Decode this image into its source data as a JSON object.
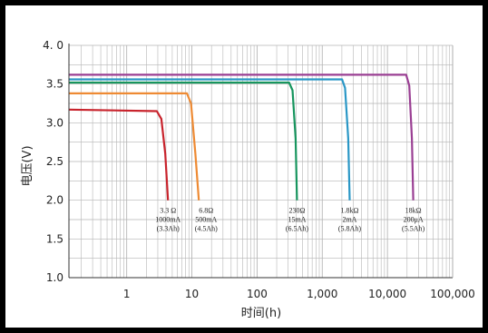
{
  "chart_data": {
    "type": "line",
    "xscale": "log",
    "xlim": [
      0.13,
      100000
    ],
    "ylim": [
      1.0,
      4.0
    ],
    "xlabel": "时间(h)",
    "ylabel": "电压(V)",
    "x_ticks": [
      {
        "value": 1,
        "label": "1"
      },
      {
        "value": 10,
        "label": "10"
      },
      {
        "value": 100,
        "label": "100"
      },
      {
        "value": 1000,
        "label": "1,000"
      },
      {
        "value": 10000,
        "label": "10,000"
      },
      {
        "value": 100000,
        "label": "100,000"
      }
    ],
    "y_ticks": [
      {
        "value": 1.0,
        "label": "1.0"
      },
      {
        "value": 1.5,
        "label": "1.5"
      },
      {
        "value": 2.0,
        "label": "2.0"
      },
      {
        "value": 2.5,
        "label": "2.5"
      },
      {
        "value": 3.0,
        "label": "3.0"
      },
      {
        "value": 3.5,
        "label": "3.5"
      },
      {
        "value": 4.0,
        "label": "4. 0"
      }
    ],
    "grid": true,
    "series": [
      {
        "color": "#c8232c",
        "points": [
          [
            0.13,
            3.17
          ],
          [
            2.9,
            3.15
          ],
          [
            3.4,
            3.05
          ],
          [
            3.9,
            2.6
          ],
          [
            4.3,
            2.0
          ]
        ],
        "annotation": [
          "3.3 Ω",
          "1000mA",
          "(3.3Ah)"
        ]
      },
      {
        "color": "#ee8a33",
        "points": [
          [
            0.13,
            3.38
          ],
          [
            8.4,
            3.38
          ],
          [
            9.7,
            3.25
          ],
          [
            11.3,
            2.6
          ],
          [
            12.8,
            2.0
          ]
        ],
        "annotation": [
          "6.8Ω",
          "500mA",
          "(4.5Ah)"
        ]
      },
      {
        "color": "#17955e",
        "points": [
          [
            0.13,
            3.52
          ],
          [
            310,
            3.52
          ],
          [
            350,
            3.42
          ],
          [
            390,
            2.8
          ],
          [
            410,
            2.0
          ]
        ],
        "annotation": [
          "230Ω",
          "15mA",
          "(6.5Ah)"
        ]
      },
      {
        "color": "#2a97c6",
        "points": [
          [
            0.13,
            3.56
          ],
          [
            2010,
            3.56
          ],
          [
            2240,
            3.45
          ],
          [
            2500,
            2.8
          ],
          [
            2630,
            2.0
          ]
        ],
        "annotation": [
          "1.8kΩ",
          "2mA",
          "(5.8Ah)"
        ]
      },
      {
        "color": "#9a3f93",
        "points": [
          [
            0.13,
            3.62
          ],
          [
            19400,
            3.62
          ],
          [
            21600,
            3.48
          ],
          [
            23700,
            2.8
          ],
          [
            24900,
            2.0
          ]
        ],
        "annotation": [
          "18kΩ",
          "200μA",
          "(5.5Ah)"
        ]
      }
    ]
  }
}
